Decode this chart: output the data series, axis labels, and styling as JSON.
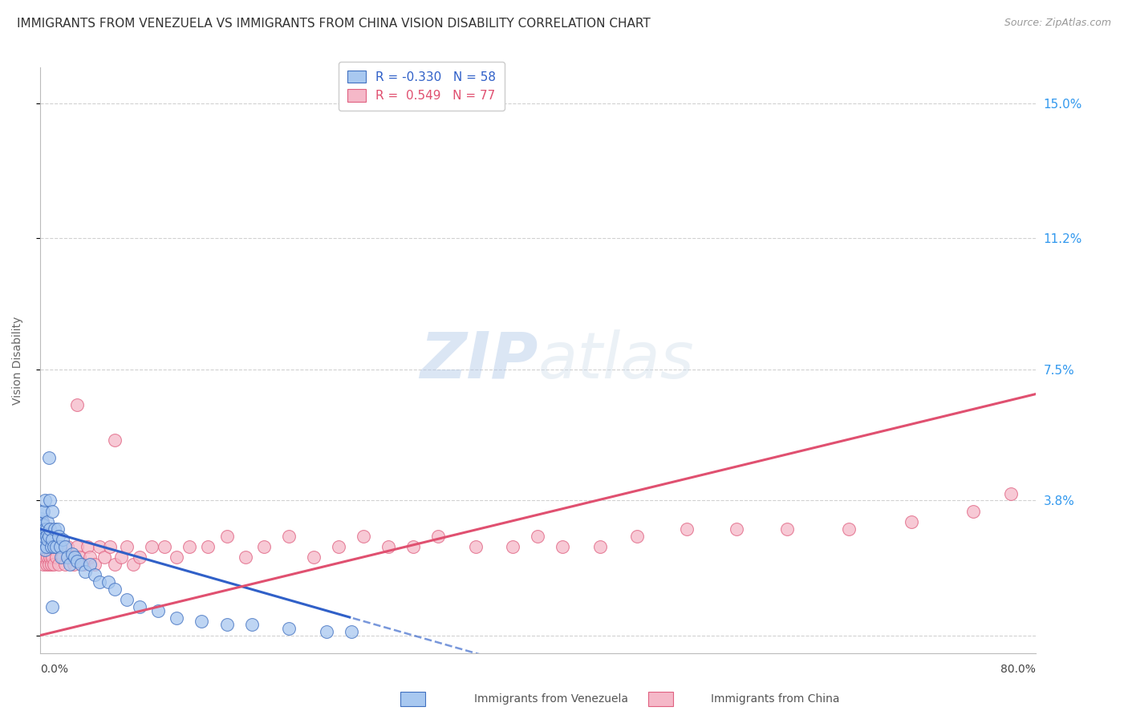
{
  "title": "IMMIGRANTS FROM VENEZUELA VS IMMIGRANTS FROM CHINA VISION DISABILITY CORRELATION CHART",
  "source": "Source: ZipAtlas.com",
  "ylabel": "Vision Disability",
  "ytick_labels": [
    "",
    "3.8%",
    "7.5%",
    "11.2%",
    "15.0%"
  ],
  "ytick_values": [
    0.0,
    0.038,
    0.075,
    0.112,
    0.15
  ],
  "xlim": [
    0.0,
    0.8
  ],
  "ylim": [
    -0.005,
    0.16
  ],
  "legend_blue_R": "-0.330",
  "legend_blue_N": "58",
  "legend_pink_R": "0.549",
  "legend_pink_N": "77",
  "legend_label_blue": "Immigrants from Venezuela",
  "legend_label_pink": "Immigrants from China",
  "blue_fill": "#a8c8f0",
  "pink_fill": "#f5b8c8",
  "blue_edge": "#4070c0",
  "pink_edge": "#e06080",
  "blue_line": "#3060c8",
  "pink_line": "#e05070",
  "title_fontsize": 11,
  "source_fontsize": 9,
  "background_color": "#ffffff",
  "grid_color": "#cccccc",
  "ven_x": [
    0.001,
    0.001,
    0.001,
    0.002,
    0.002,
    0.002,
    0.002,
    0.003,
    0.003,
    0.003,
    0.003,
    0.004,
    0.004,
    0.004,
    0.005,
    0.005,
    0.005,
    0.006,
    0.006,
    0.007,
    0.007,
    0.008,
    0.008,
    0.009,
    0.01,
    0.01,
    0.011,
    0.012,
    0.013,
    0.014,
    0.015,
    0.016,
    0.017,
    0.018,
    0.02,
    0.022,
    0.024,
    0.026,
    0.028,
    0.03,
    0.033,
    0.036,
    0.04,
    0.044,
    0.048,
    0.055,
    0.06,
    0.07,
    0.08,
    0.095,
    0.11,
    0.13,
    0.15,
    0.17,
    0.2,
    0.23,
    0.25,
    0.01
  ],
  "ven_y": [
    0.028,
    0.03,
    0.033,
    0.025,
    0.027,
    0.032,
    0.035,
    0.026,
    0.028,
    0.031,
    0.035,
    0.024,
    0.03,
    0.038,
    0.025,
    0.03,
    0.028,
    0.027,
    0.032,
    0.05,
    0.028,
    0.03,
    0.038,
    0.025,
    0.027,
    0.035,
    0.025,
    0.03,
    0.025,
    0.03,
    0.028,
    0.025,
    0.022,
    0.027,
    0.025,
    0.022,
    0.02,
    0.023,
    0.022,
    0.021,
    0.02,
    0.018,
    0.02,
    0.017,
    0.015,
    0.015,
    0.013,
    0.01,
    0.008,
    0.007,
    0.005,
    0.004,
    0.003,
    0.003,
    0.002,
    0.001,
    0.001,
    0.008
  ],
  "china_x": [
    0.001,
    0.001,
    0.002,
    0.002,
    0.002,
    0.003,
    0.003,
    0.003,
    0.004,
    0.004,
    0.004,
    0.005,
    0.005,
    0.006,
    0.006,
    0.007,
    0.007,
    0.008,
    0.008,
    0.009,
    0.01,
    0.01,
    0.011,
    0.012,
    0.013,
    0.014,
    0.015,
    0.016,
    0.018,
    0.02,
    0.022,
    0.025,
    0.027,
    0.03,
    0.032,
    0.035,
    0.038,
    0.04,
    0.044,
    0.048,
    0.052,
    0.056,
    0.06,
    0.065,
    0.07,
    0.075,
    0.08,
    0.09,
    0.1,
    0.11,
    0.12,
    0.135,
    0.15,
    0.165,
    0.18,
    0.2,
    0.22,
    0.24,
    0.26,
    0.28,
    0.3,
    0.32,
    0.35,
    0.38,
    0.4,
    0.42,
    0.45,
    0.48,
    0.52,
    0.56,
    0.6,
    0.65,
    0.7,
    0.75,
    0.78,
    0.03,
    0.06
  ],
  "china_y": [
    0.025,
    0.03,
    0.022,
    0.028,
    0.032,
    0.02,
    0.025,
    0.028,
    0.022,
    0.026,
    0.03,
    0.02,
    0.025,
    0.022,
    0.028,
    0.02,
    0.025,
    0.022,
    0.03,
    0.02,
    0.022,
    0.028,
    0.02,
    0.025,
    0.022,
    0.025,
    0.02,
    0.025,
    0.022,
    0.02,
    0.025,
    0.022,
    0.02,
    0.025,
    0.022,
    0.02,
    0.025,
    0.022,
    0.02,
    0.025,
    0.022,
    0.025,
    0.02,
    0.022,
    0.025,
    0.02,
    0.022,
    0.025,
    0.025,
    0.022,
    0.025,
    0.025,
    0.028,
    0.022,
    0.025,
    0.028,
    0.022,
    0.025,
    0.028,
    0.025,
    0.025,
    0.028,
    0.025,
    0.025,
    0.028,
    0.025,
    0.025,
    0.028,
    0.03,
    0.03,
    0.03,
    0.03,
    0.032,
    0.035,
    0.04,
    0.065,
    0.055
  ]
}
